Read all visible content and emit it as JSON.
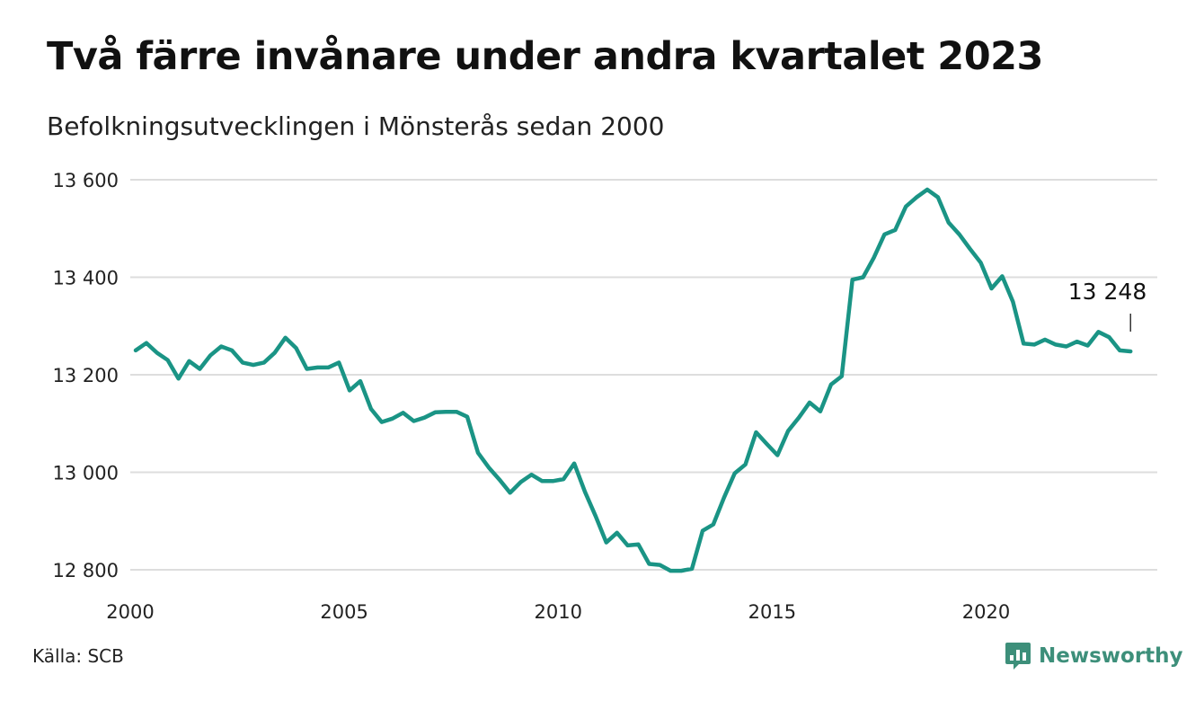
{
  "header": {
    "title": "Två färre invånare under andra kvartalet 2023",
    "subtitle": "Befolkningsutvecklingen i Mönsterås sedan 2000"
  },
  "footer": {
    "source": "Källa: SCB",
    "brand_name": "Newsworthy",
    "brand_icon": "newsworthy-logo-icon"
  },
  "colors": {
    "line": "#1a9485",
    "grid": "#dddddd",
    "brand": "#3d8f7a"
  },
  "chart_data": {
    "type": "line",
    "title": "Två färre invånare under andra kvartalet 2023",
    "subtitle": "Befolkningsutvecklingen i Mönsterås sedan 2000",
    "xlabel": "",
    "ylabel": "",
    "xlim": [
      2000,
      2024
    ],
    "ylim": [
      12800,
      13600
    ],
    "x_ticks": [
      2000,
      2005,
      2010,
      2015,
      2020
    ],
    "x_tick_labels": [
      "2000",
      "2005",
      "2010",
      "2015",
      "2020"
    ],
    "y_ticks": [
      12800,
      13000,
      13200,
      13400,
      13600
    ],
    "y_tick_labels": [
      "12 800",
      "13 000",
      "13 200",
      "13 400",
      "13 600"
    ],
    "grid": "horizontal",
    "series": [
      {
        "values": [
          [
            2000.125,
            13250
          ],
          [
            2000.375,
            13265
          ],
          [
            2000.625,
            13245
          ],
          [
            2000.875,
            13230
          ],
          [
            2001.125,
            13192
          ],
          [
            2001.375,
            13228
          ],
          [
            2001.625,
            13212
          ],
          [
            2001.875,
            13240
          ],
          [
            2002.125,
            13258
          ],
          [
            2002.375,
            13250
          ],
          [
            2002.625,
            13225
          ],
          [
            2002.875,
            13220
          ],
          [
            2003.125,
            13225
          ],
          [
            2003.375,
            13245
          ],
          [
            2003.625,
            13276
          ],
          [
            2003.875,
            13255
          ],
          [
            2004.125,
            13212
          ],
          [
            2004.375,
            13215
          ],
          [
            2004.625,
            13215
          ],
          [
            2004.875,
            13225
          ],
          [
            2005.125,
            13168
          ],
          [
            2005.375,
            13187
          ],
          [
            2005.625,
            13130
          ],
          [
            2005.875,
            13103
          ],
          [
            2006.125,
            13110
          ],
          [
            2006.375,
            13122
          ],
          [
            2006.625,
            13105
          ],
          [
            2006.875,
            13112
          ],
          [
            2007.125,
            13123
          ],
          [
            2007.375,
            13124
          ],
          [
            2007.625,
            13124
          ],
          [
            2007.875,
            13114
          ],
          [
            2008.125,
            13040
          ],
          [
            2008.375,
            13010
          ],
          [
            2008.625,
            12985
          ],
          [
            2008.875,
            12958
          ],
          [
            2009.125,
            12980
          ],
          [
            2009.375,
            12995
          ],
          [
            2009.625,
            12982
          ],
          [
            2009.875,
            12982
          ],
          [
            2010.125,
            12986
          ],
          [
            2010.375,
            13018
          ],
          [
            2010.625,
            12960
          ],
          [
            2010.875,
            12910
          ],
          [
            2011.125,
            12856
          ],
          [
            2011.375,
            12876
          ],
          [
            2011.625,
            12850
          ],
          [
            2011.875,
            12852
          ],
          [
            2012.125,
            12812
          ],
          [
            2012.375,
            12810
          ],
          [
            2012.625,
            12798
          ],
          [
            2012.875,
            12798
          ],
          [
            2013.125,
            12802
          ],
          [
            2013.375,
            12880
          ],
          [
            2013.625,
            12893
          ],
          [
            2013.875,
            12948
          ],
          [
            2014.125,
            12998
          ],
          [
            2014.375,
            13016
          ],
          [
            2014.625,
            13082
          ],
          [
            2014.875,
            13058
          ],
          [
            2015.125,
            13035
          ],
          [
            2015.375,
            13085
          ],
          [
            2015.625,
            13112
          ],
          [
            2015.875,
            13143
          ],
          [
            2016.125,
            13125
          ],
          [
            2016.375,
            13180
          ],
          [
            2016.625,
            13197
          ],
          [
            2016.875,
            13395
          ],
          [
            2017.125,
            13400
          ],
          [
            2017.375,
            13440
          ],
          [
            2017.625,
            13488
          ],
          [
            2017.875,
            13497
          ],
          [
            2018.125,
            13545
          ],
          [
            2018.375,
            13564
          ],
          [
            2018.625,
            13580
          ],
          [
            2018.875,
            13564
          ],
          [
            2019.125,
            13512
          ],
          [
            2019.375,
            13488
          ],
          [
            2019.625,
            13458
          ],
          [
            2019.875,
            13430
          ],
          [
            2020.125,
            13377
          ],
          [
            2020.375,
            13402
          ],
          [
            2020.625,
            13350
          ],
          [
            2020.875,
            13264
          ],
          [
            2021.125,
            13262
          ],
          [
            2021.375,
            13272
          ],
          [
            2021.625,
            13262
          ],
          [
            2021.875,
            13258
          ],
          [
            2022.125,
            13268
          ],
          [
            2022.375,
            13260
          ],
          [
            2022.625,
            13288
          ],
          [
            2022.875,
            13277
          ],
          [
            2023.125,
            13250
          ],
          [
            2023.375,
            13248
          ]
        ]
      }
    ],
    "annotations": [
      {
        "x": 2023.375,
        "y": 13248,
        "text": "13 248"
      }
    ]
  }
}
